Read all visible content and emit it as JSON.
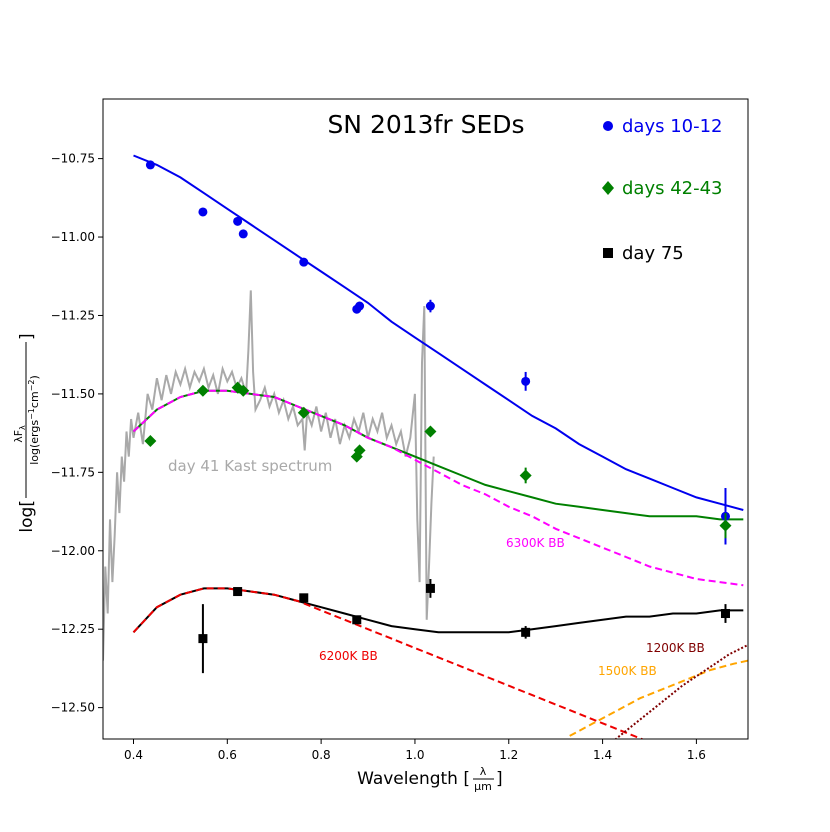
{
  "chart_data": {
    "type": "scatter",
    "title": "SN 2013fr SEDs",
    "xlabel_prefix": "Wavelength [",
    "xlabel_num": "λ",
    "xlabel_den": "μm",
    "xlabel_suffix": "]",
    "ylabel_prefix": "log[",
    "ylabel_num": "λF",
    "ylabel_num_sub": "λ",
    "ylabel_den": "log(ergs",
    "ylabel_den_sup1": "−1",
    "ylabel_den_mid": "cm",
    "ylabel_den_sup2": "−2",
    "ylabel_den_end": ")",
    "ylabel_suffix": "]",
    "xlim": [
      0.335,
      1.71
    ],
    "ylim": [
      -12.6,
      -10.56
    ],
    "xticks": [
      0.4,
      0.6,
      0.8,
      1.0,
      1.2,
      1.4,
      1.6
    ],
    "xtick_labels": [
      "0.4",
      "0.6",
      "0.8",
      "1.0",
      "1.2",
      "1.4",
      "1.6"
    ],
    "yticks": [
      -10.75,
      -11.0,
      -11.25,
      -11.5,
      -11.75,
      -12.0,
      -12.25,
      -12.5
    ],
    "ytick_labels": [
      "−10.75",
      "−11.00",
      "−11.25",
      "−11.50",
      "−11.75",
      "−12.00",
      "−12.25",
      "−12.50"
    ],
    "colors": {
      "early": "#0000ee",
      "mid": "#008000",
      "late": "#000000",
      "spectrum": "#a9a9a9",
      "bb6300": "#ff00ff",
      "bb6200": "#ee0000",
      "bb1500": "#ffa500",
      "bb1200": "#800000"
    },
    "series": [
      {
        "name": "days 10-12",
        "marker": "circle",
        "color": "#0000ee",
        "x": [
          0.436,
          0.548,
          0.622,
          0.634,
          0.763,
          0.876,
          0.882,
          1.033,
          1.236,
          1.662
        ],
        "y": [
          -10.77,
          -10.92,
          -10.95,
          -10.99,
          -11.08,
          -11.23,
          -11.22,
          -11.22,
          -11.46,
          -11.89
        ],
        "yerr": [
          0,
          0,
          0,
          0,
          0,
          0,
          0,
          0.02,
          0.03,
          0.09
        ]
      },
      {
        "name": "days 42-43",
        "marker": "diamond",
        "color": "#008000",
        "x": [
          0.436,
          0.548,
          0.622,
          0.634,
          0.763,
          0.876,
          0.882,
          1.033,
          1.236,
          1.662
        ],
        "y": [
          -11.65,
          -11.49,
          -11.48,
          -11.49,
          -11.56,
          -11.7,
          -11.68,
          -11.62,
          -11.76,
          -11.92
        ],
        "yerr": [
          0,
          0,
          0,
          0,
          0,
          0,
          0,
          0,
          0.025,
          0.04
        ]
      },
      {
        "name": "day 75",
        "marker": "square",
        "color": "#000000",
        "x": [
          0.548,
          0.622,
          0.763,
          0.876,
          1.033,
          1.236,
          1.662
        ],
        "y": [
          -12.28,
          -12.13,
          -12.15,
          -12.22,
          -12.12,
          -12.26,
          -12.2
        ],
        "yerr": [
          0.11,
          0,
          0,
          0,
          0.03,
          0.02,
          0.03
        ]
      }
    ],
    "fits": [
      {
        "name": "days 10-12 fit",
        "color": "#0000ee",
        "dash": false,
        "x": [
          0.4,
          0.45,
          0.5,
          0.55,
          0.6,
          0.65,
          0.7,
          0.75,
          0.8,
          0.85,
          0.9,
          0.95,
          1.0,
          1.05,
          1.1,
          1.15,
          1.2,
          1.25,
          1.3,
          1.35,
          1.4,
          1.45,
          1.5,
          1.55,
          1.6,
          1.65,
          1.7
        ],
        "y": [
          -10.74,
          -10.77,
          -10.81,
          -10.86,
          -10.91,
          -10.96,
          -11.01,
          -11.06,
          -11.11,
          -11.16,
          -11.21,
          -11.27,
          -11.32,
          -11.37,
          -11.42,
          -11.47,
          -11.52,
          -11.57,
          -11.61,
          -11.66,
          -11.7,
          -11.74,
          -11.77,
          -11.8,
          -11.83,
          -11.85,
          -11.87
        ]
      },
      {
        "name": "days 42-43 fit",
        "color": "#008000",
        "dash": false,
        "x": [
          0.4,
          0.45,
          0.5,
          0.55,
          0.6,
          0.65,
          0.7,
          0.75,
          0.8,
          0.85,
          0.9,
          0.95,
          1.0,
          1.05,
          1.1,
          1.15,
          1.2,
          1.25,
          1.3,
          1.35,
          1.4,
          1.45,
          1.5,
          1.55,
          1.6,
          1.65,
          1.7
        ],
        "y": [
          -11.62,
          -11.55,
          -11.51,
          -11.49,
          -11.49,
          -11.5,
          -11.51,
          -11.54,
          -11.57,
          -11.6,
          -11.64,
          -11.67,
          -11.7,
          -11.73,
          -11.76,
          -11.79,
          -11.81,
          -11.83,
          -11.85,
          -11.86,
          -11.87,
          -11.88,
          -11.89,
          -11.89,
          -11.89,
          -11.9,
          -11.9
        ]
      },
      {
        "name": "day 75 fit",
        "color": "#000000",
        "dash": false,
        "x": [
          0.4,
          0.45,
          0.5,
          0.55,
          0.6,
          0.65,
          0.7,
          0.75,
          0.8,
          0.85,
          0.9,
          0.95,
          1.0,
          1.05,
          1.1,
          1.15,
          1.2,
          1.25,
          1.3,
          1.35,
          1.4,
          1.45,
          1.5,
          1.55,
          1.6,
          1.65,
          1.7
        ],
        "y": [
          -12.26,
          -12.18,
          -12.14,
          -12.12,
          -12.12,
          -12.13,
          -12.14,
          -12.16,
          -12.18,
          -12.2,
          -12.22,
          -12.24,
          -12.25,
          -12.26,
          -12.26,
          -12.26,
          -12.26,
          -12.25,
          -12.24,
          -12.23,
          -12.22,
          -12.21,
          -12.21,
          -12.2,
          -12.2,
          -12.19,
          -12.19
        ]
      },
      {
        "name": "6300K BB",
        "color": "#ff00ff",
        "dash": true,
        "x": [
          0.4,
          0.45,
          0.5,
          0.55,
          0.6,
          0.65,
          0.7,
          0.75,
          0.8,
          0.85,
          0.9,
          0.95,
          1.0,
          1.05,
          1.1,
          1.15,
          1.2,
          1.25,
          1.3,
          1.35,
          1.4,
          1.45,
          1.5,
          1.55,
          1.6,
          1.65,
          1.7
        ],
        "y": [
          -11.62,
          -11.55,
          -11.51,
          -11.49,
          -11.49,
          -11.5,
          -11.51,
          -11.54,
          -11.57,
          -11.6,
          -11.64,
          -11.67,
          -11.71,
          -11.75,
          -11.79,
          -11.82,
          -11.86,
          -11.89,
          -11.93,
          -11.96,
          -11.99,
          -12.02,
          -12.05,
          -12.07,
          -12.09,
          -12.1,
          -12.11
        ]
      },
      {
        "name": "6200K BB",
        "color": "#ee0000",
        "dash": true,
        "x": [
          0.4,
          0.45,
          0.5,
          0.55,
          0.6,
          0.65,
          0.7,
          0.75,
          0.8,
          0.85,
          0.9,
          0.95,
          1.0,
          1.05,
          1.1,
          1.15,
          1.2,
          1.25,
          1.3,
          1.35,
          1.4,
          1.45,
          1.5
        ],
        "y": [
          -12.26,
          -12.18,
          -12.14,
          -12.12,
          -12.12,
          -12.13,
          -12.14,
          -12.16,
          -12.19,
          -12.22,
          -12.25,
          -12.28,
          -12.31,
          -12.34,
          -12.37,
          -12.4,
          -12.43,
          -12.46,
          -12.49,
          -12.52,
          -12.55,
          -12.58,
          -12.61
        ]
      },
      {
        "name": "1500K BB",
        "color": "#ffa500",
        "dash": true,
        "x": [
          1.33,
          1.38,
          1.43,
          1.48,
          1.53,
          1.58,
          1.63,
          1.68,
          1.71
        ],
        "y": [
          -12.59,
          -12.55,
          -12.51,
          -12.47,
          -12.44,
          -12.41,
          -12.38,
          -12.36,
          -12.35
        ]
      },
      {
        "name": "1200K BB",
        "color": "#800000",
        "dash": true,
        "dotted": true,
        "x": [
          1.42,
          1.47,
          1.52,
          1.57,
          1.62,
          1.67,
          1.71
        ],
        "y": [
          -12.61,
          -12.55,
          -12.49,
          -12.43,
          -12.38,
          -12.33,
          -12.3
        ]
      }
    ],
    "spectrum": {
      "name": "day 41 Kast spectrum",
      "color": "#a9a9a9",
      "x": [
        0.335,
        0.34,
        0.345,
        0.35,
        0.355,
        0.36,
        0.365,
        0.37,
        0.375,
        0.38,
        0.385,
        0.39,
        0.395,
        0.4,
        0.41,
        0.42,
        0.43,
        0.44,
        0.45,
        0.46,
        0.47,
        0.48,
        0.49,
        0.5,
        0.51,
        0.52,
        0.53,
        0.54,
        0.55,
        0.56,
        0.57,
        0.58,
        0.59,
        0.6,
        0.61,
        0.62,
        0.63,
        0.64,
        0.645,
        0.65,
        0.655,
        0.66,
        0.67,
        0.68,
        0.69,
        0.7,
        0.71,
        0.72,
        0.73,
        0.74,
        0.75,
        0.76,
        0.765,
        0.77,
        0.78,
        0.79,
        0.8,
        0.81,
        0.82,
        0.83,
        0.84,
        0.85,
        0.86,
        0.87,
        0.88,
        0.89,
        0.9,
        0.91,
        0.92,
        0.93,
        0.94,
        0.95,
        0.96,
        0.97,
        0.98,
        0.99,
        1.0,
        1.005,
        1.01,
        1.015,
        1.02,
        1.025,
        1.03,
        1.035,
        1.04
      ],
      "y": [
        -12.35,
        -12.05,
        -12.2,
        -11.9,
        -12.1,
        -11.95,
        -11.75,
        -11.88,
        -11.7,
        -11.78,
        -11.62,
        -11.7,
        -11.58,
        -11.64,
        -11.56,
        -11.66,
        -11.5,
        -11.55,
        -11.45,
        -11.52,
        -11.44,
        -11.5,
        -11.43,
        -11.47,
        -11.42,
        -11.48,
        -11.43,
        -11.46,
        -11.42,
        -11.48,
        -11.44,
        -11.5,
        -11.42,
        -11.46,
        -11.43,
        -11.48,
        -11.45,
        -11.5,
        -11.36,
        -11.17,
        -11.43,
        -11.55,
        -11.52,
        -11.48,
        -11.54,
        -11.5,
        -11.56,
        -11.52,
        -11.58,
        -11.54,
        -11.6,
        -11.58,
        -11.68,
        -11.56,
        -11.6,
        -11.54,
        -11.62,
        -11.56,
        -11.64,
        -11.58,
        -11.66,
        -11.6,
        -11.64,
        -11.58,
        -11.62,
        -11.56,
        -11.64,
        -11.58,
        -11.62,
        -11.56,
        -11.64,
        -11.6,
        -11.66,
        -11.62,
        -11.7,
        -11.64,
        -11.5,
        -11.9,
        -12.1,
        -11.4,
        -11.22,
        -12.22,
        -12.05,
        -11.85,
        -11.7
      ]
    },
    "legend_position": "top-right",
    "annotations": [
      {
        "text": "day 41 Kast spectrum",
        "color": "#a9a9a9"
      },
      {
        "text": "6300K BB",
        "color": "#ff00ff"
      },
      {
        "text": "6200K BB",
        "color": "#ee0000"
      },
      {
        "text": "1500K BB",
        "color": "#ffa500"
      },
      {
        "text": "1200K BB",
        "color": "#800000"
      }
    ]
  }
}
